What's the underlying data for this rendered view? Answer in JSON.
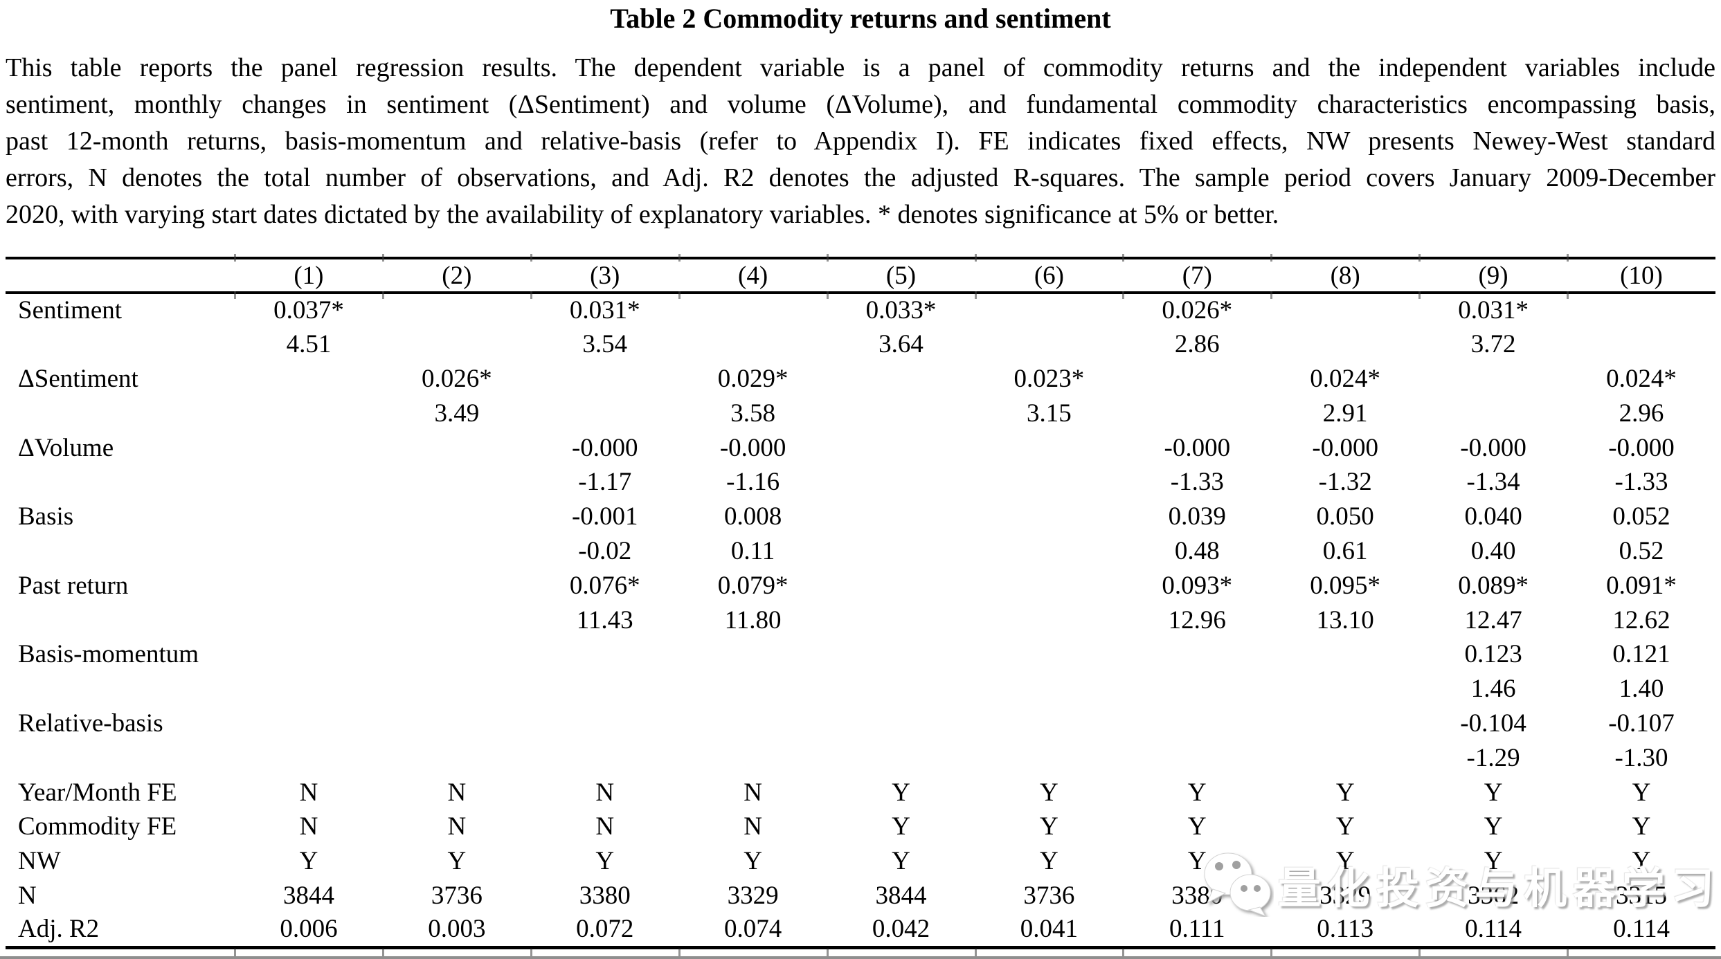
{
  "title": "Table 2 Commodity returns and sentiment",
  "description_lines": [
    "This table reports the panel regression results. The dependent variable is a panel of commodity returns and the independent variables include",
    "sentiment, monthly changes in sentiment (ΔSentiment) and volume (ΔVolume), and fundamental commodity characteristics encompassing basis,",
    "past 12-month returns, basis-momentum and relative-basis (refer to Appendix I). FE indicates fixed effects, NW presents Newey-West standard",
    "errors, N denotes the total number of observations, and Adj. R2 denotes the adjusted R-squares. The sample period covers January 2009-December",
    "2020, with varying start dates dictated by the availability of explanatory variables. * denotes significance at 5% or better."
  ],
  "watermark": {
    "text": "量化投资与机器学习",
    "icon": "wechat-logo"
  },
  "table": {
    "header": [
      "",
      "(1)",
      "(2)",
      "(3)",
      "(4)",
      "(5)",
      "(6)",
      "(7)",
      "(8)",
      "(9)",
      "(10)"
    ],
    "rows": [
      {
        "label": "Sentiment",
        "values": [
          "0.037*",
          "",
          "0.031*",
          "",
          "0.033*",
          "",
          "0.026*",
          "",
          "0.031*",
          ""
        ]
      },
      {
        "label": "",
        "values": [
          "4.51",
          "",
          "3.54",
          "",
          "3.64",
          "",
          "2.86",
          "",
          "3.72",
          ""
        ]
      },
      {
        "label": "ΔSentiment",
        "values": [
          "",
          "0.026*",
          "",
          "0.029*",
          "",
          "0.023*",
          "",
          "0.024*",
          "",
          "0.024*"
        ]
      },
      {
        "label": "",
        "values": [
          "",
          "3.49",
          "",
          "3.58",
          "",
          "3.15",
          "",
          "2.91",
          "",
          "2.96"
        ]
      },
      {
        "label": "ΔVolume",
        "values": [
          "",
          "",
          "-0.000",
          "-0.000",
          "",
          "",
          "-0.000",
          "-0.000",
          "-0.000",
          "-0.000"
        ]
      },
      {
        "label": "",
        "values": [
          "",
          "",
          "-1.17",
          "-1.16",
          "",
          "",
          "-1.33",
          "-1.32",
          "-1.34",
          "-1.33"
        ]
      },
      {
        "label": "Basis",
        "values": [
          "",
          "",
          "-0.001",
          "0.008",
          "",
          "",
          "0.039",
          "0.050",
          "0.040",
          "0.052"
        ]
      },
      {
        "label": "",
        "values": [
          "",
          "",
          "-0.02",
          "0.11",
          "",
          "",
          "0.48",
          "0.61",
          "0.40",
          "0.52"
        ]
      },
      {
        "label": "Past return",
        "values": [
          "",
          "",
          "0.076*",
          "0.079*",
          "",
          "",
          "0.093*",
          "0.095*",
          "0.089*",
          "0.091*"
        ]
      },
      {
        "label": "",
        "values": [
          "",
          "",
          "11.43",
          "11.80",
          "",
          "",
          "12.96",
          "13.10",
          "12.47",
          "12.62"
        ]
      },
      {
        "label": "Basis-momentum",
        "values": [
          "",
          "",
          "",
          "",
          "",
          "",
          "",
          "",
          "0.123",
          "0.121"
        ]
      },
      {
        "label": "",
        "values": [
          "",
          "",
          "",
          "",
          "",
          "",
          "",
          "",
          "1.46",
          "1.40"
        ]
      },
      {
        "label": "Relative-basis",
        "values": [
          "",
          "",
          "",
          "",
          "",
          "",
          "",
          "",
          "-0.104",
          "-0.107"
        ]
      },
      {
        "label": "",
        "values": [
          "",
          "",
          "",
          "",
          "",
          "",
          "",
          "",
          "-1.29",
          "-1.30"
        ]
      },
      {
        "label": "Year/Month FE",
        "values": [
          "N",
          "N",
          "N",
          "N",
          "Y",
          "Y",
          "Y",
          "Y",
          "Y",
          "Y"
        ]
      },
      {
        "label": "Commodity FE",
        "values": [
          "N",
          "N",
          "N",
          "N",
          "Y",
          "Y",
          "Y",
          "Y",
          "Y",
          "Y"
        ]
      },
      {
        "label": "NW",
        "values": [
          "Y",
          "Y",
          "Y",
          "Y",
          "Y",
          "Y",
          "Y",
          "Y",
          "Y",
          "Y"
        ]
      },
      {
        "label": "N",
        "values": [
          "3844",
          "3736",
          "3380",
          "3329",
          "3844",
          "3736",
          "3380",
          "3329",
          "3362",
          "3315"
        ]
      },
      {
        "label": "Adj. R2",
        "values": [
          "0.006",
          "0.003",
          "0.072",
          "0.074",
          "0.042",
          "0.041",
          "0.111",
          "0.113",
          "0.114",
          "0.114"
        ]
      }
    ]
  }
}
